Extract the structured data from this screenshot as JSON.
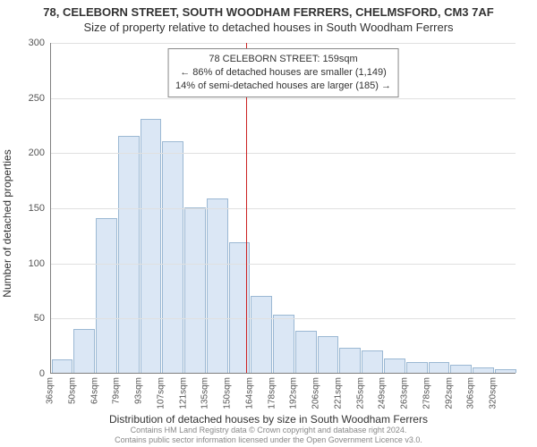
{
  "title_line1": "78, CELEBORN STREET, SOUTH WOODHAM FERRERS, CHELMSFORD, CM3 7AF",
  "title_line2": "Size of property relative to detached houses in South Woodham Ferrers",
  "ylabel": "Number of detached properties",
  "xlabel": "Distribution of detached houses by size in South Woodham Ferrers",
  "footer_line1": "Contains HM Land Registry data © Crown copyright and database right 2024.",
  "footer_line2": "Contains public sector information licensed under the Open Government Licence v3.0.",
  "annotation": {
    "line1": "78 CELEBORN STREET: 159sqm",
    "line2": "← 86% of detached houses are smaller (1,149)",
    "line3": "14% of semi-detached houses are larger (185) →"
  },
  "chart": {
    "type": "histogram",
    "ylim": [
      0,
      300
    ],
    "ytick_step": 50,
    "yticks": [
      0,
      50,
      100,
      150,
      200,
      250,
      300
    ],
    "bar_fill": "#dbe7f5",
    "bar_stroke": "#9bb8d3",
    "grid_color": "#e0e0e0",
    "axis_color": "#808080",
    "background_color": "#ffffff",
    "marker_line_color": "#cc2222",
    "marker_x_value": 159,
    "x_start": 36,
    "x_step": 14,
    "categories": [
      "36sqm",
      "50sqm",
      "64sqm",
      "79sqm",
      "93sqm",
      "107sqm",
      "121sqm",
      "135sqm",
      "150sqm",
      "164sqm",
      "178sqm",
      "192sqm",
      "206sqm",
      "221sqm",
      "235sqm",
      "249sqm",
      "263sqm",
      "278sqm",
      "292sqm",
      "306sqm",
      "320sqm"
    ],
    "values": [
      12,
      40,
      140,
      215,
      230,
      210,
      150,
      158,
      118,
      70,
      53,
      38,
      33,
      23,
      20,
      13,
      10,
      10,
      7,
      5,
      3
    ],
    "title_fontsize": 13,
    "label_fontsize": 12,
    "tick_fontsize": 11,
    "annotation_fontsize": 11
  }
}
